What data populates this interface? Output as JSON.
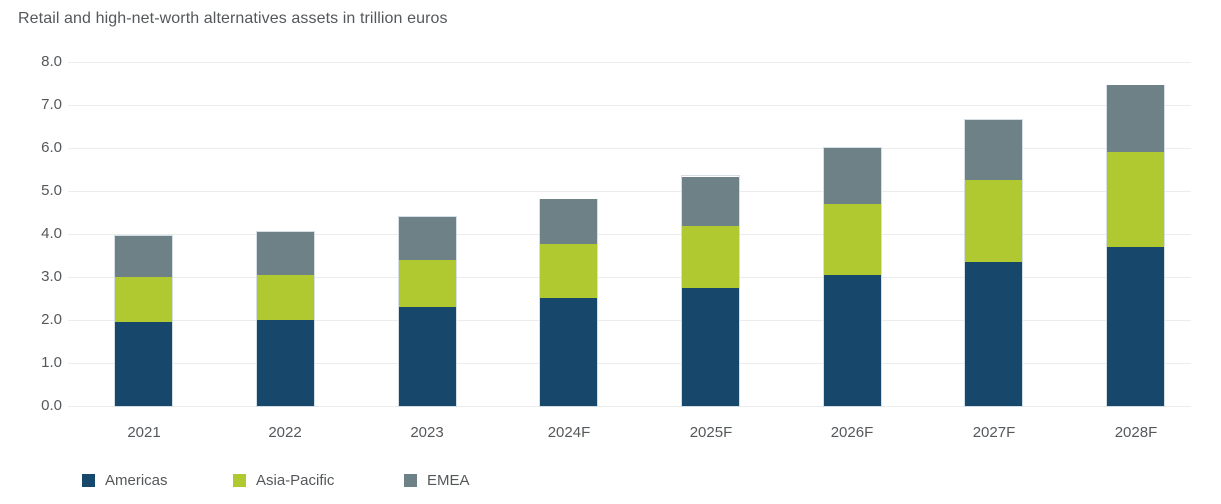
{
  "chart_data": {
    "type": "bar",
    "stacked": true,
    "title": "Retail and high-net-worth alternatives assets in trillion euros",
    "categories": [
      "2021",
      "2022",
      "2023",
      "2024F",
      "2025F",
      "2026F",
      "2027F",
      "2028F"
    ],
    "series": [
      {
        "name": "Americas",
        "color": "#17486B",
        "values": [
          1.95,
          2.0,
          2.3,
          2.5,
          2.75,
          3.05,
          3.35,
          3.7
        ]
      },
      {
        "name": "Asia-Pacific",
        "color": "#B1C931",
        "values": [
          1.05,
          1.05,
          1.1,
          1.25,
          1.45,
          1.65,
          1.9,
          2.2
        ]
      },
      {
        "name": "EMEA",
        "color": "#6E8187",
        "values": [
          0.95,
          1.0,
          1.0,
          1.05,
          1.15,
          1.3,
          1.4,
          1.55
        ]
      }
    ],
    "totals": [
      3.95,
      4.05,
      4.4,
      4.8,
      5.35,
      6.0,
      6.65,
      7.45
    ],
    "ylabel": "",
    "xlabel": "",
    "ylim": [
      0,
      8
    ],
    "ytick_step": 1.0,
    "ytick_labels": [
      "0.0",
      "1.0",
      "2.0",
      "3.0",
      "4.0",
      "5.0",
      "6.0",
      "7.0",
      "8.0"
    ],
    "grid": "horizontal",
    "legend_position": "bottom-left",
    "colors": {
      "background": "#FFFFFF",
      "gridline": "#EBEDED",
      "text": "#55585B",
      "bar_outline": "#CBD8E2"
    }
  }
}
